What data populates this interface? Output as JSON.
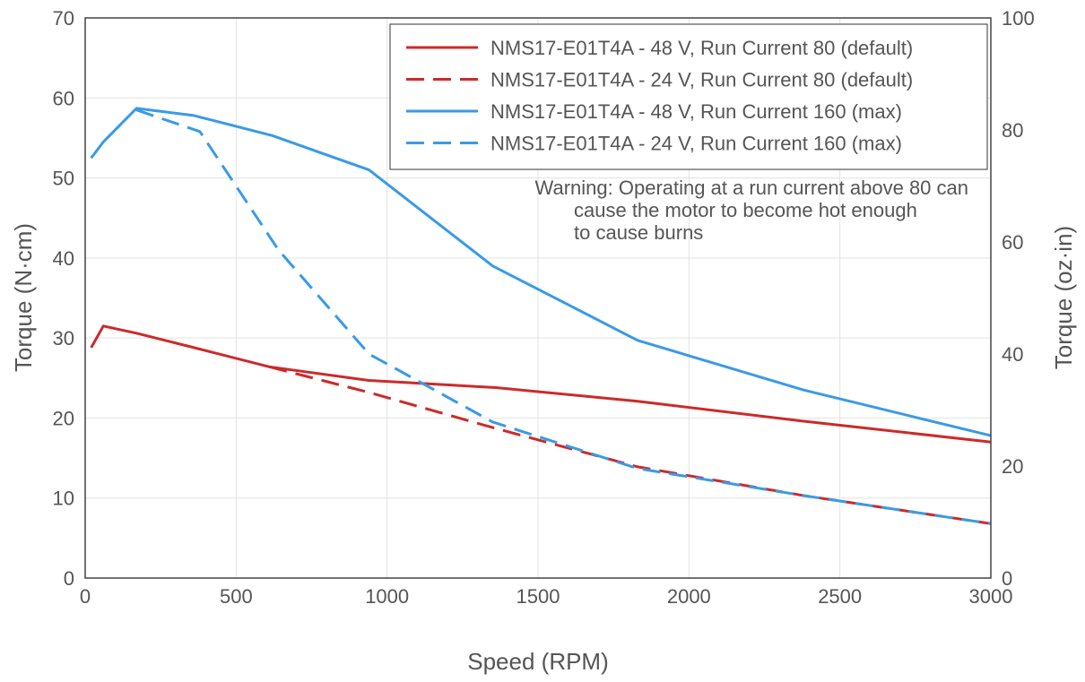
{
  "chart_data": {
    "type": "line",
    "title": "",
    "xlabel": "Speed (RPM)",
    "ylabel": "Torque (N·cm)",
    "y2label": "Torque (oz·in)",
    "xlim": [
      0,
      3000
    ],
    "ylim": [
      0,
      70
    ],
    "y2lim": [
      0,
      100
    ],
    "x_ticks": [
      0,
      500,
      1000,
      1500,
      2000,
      2500,
      3000
    ],
    "y_ticks": [
      0,
      10,
      20,
      30,
      40,
      50,
      60,
      70
    ],
    "y2_ticks": [
      0,
      20,
      40,
      60,
      80,
      100
    ],
    "grid": true,
    "legend_position": "top-right",
    "series": [
      {
        "name": "NMS17-E01T4A - 48 V, Run Current 80 (default)",
        "color": "#cc2a2a",
        "dash": "solid",
        "points": [
          [
            20,
            28.8
          ],
          [
            60,
            31.5
          ],
          [
            170,
            30.6
          ],
          [
            350,
            28.9
          ],
          [
            610,
            26.4
          ],
          [
            940,
            24.7
          ],
          [
            1360,
            23.8
          ],
          [
            1830,
            22.1
          ],
          [
            2380,
            19.6
          ],
          [
            3000,
            17.0
          ]
        ]
      },
      {
        "name": "NMS17-E01T4A - 24 V, Run Current 80 (default)",
        "color": "#cc2a2a",
        "dash": "dashed",
        "points": [
          [
            610,
            26.4
          ],
          [
            940,
            23.2
          ],
          [
            1350,
            18.8
          ],
          [
            1830,
            13.9
          ],
          [
            2380,
            10.3
          ],
          [
            3000,
            6.8
          ]
        ]
      },
      {
        "name": "NMS17-E01T4A - 48 V, Run Current 160 (max)",
        "color": "#3a9ae6",
        "dash": "solid",
        "points": [
          [
            20,
            52.5
          ],
          [
            60,
            54.5
          ],
          [
            170,
            58.7
          ],
          [
            360,
            57.8
          ],
          [
            620,
            55.3
          ],
          [
            940,
            51.0
          ],
          [
            1350,
            39.0
          ],
          [
            1830,
            29.7
          ],
          [
            2380,
            23.5
          ],
          [
            3000,
            17.8
          ]
        ]
      },
      {
        "name": "NMS17-E01T4A - 24 V, Run Current 160 (max)",
        "color": "#3a9ae6",
        "dash": "dashed",
        "points": [
          [
            170,
            58.5
          ],
          [
            380,
            55.8
          ],
          [
            640,
            41.0
          ],
          [
            940,
            28.0
          ],
          [
            1350,
            19.5
          ],
          [
            1830,
            13.7
          ],
          [
            2380,
            10.3
          ],
          [
            3000,
            6.8
          ]
        ]
      }
    ],
    "annotation": [
      "Warning: Operating at a run current above 80 can",
      "cause the motor to become hot enough",
      "to cause burns"
    ]
  }
}
